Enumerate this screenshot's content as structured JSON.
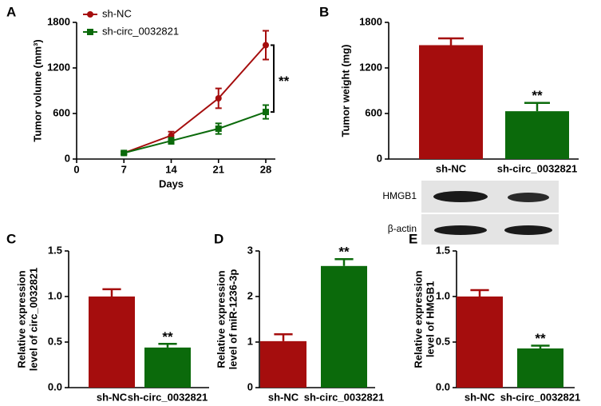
{
  "chart_data": [
    {
      "type": "line",
      "panel": "A",
      "y_label": "Tumor volume (mm³)",
      "x_label": "Days",
      "x": [
        7,
        14,
        21,
        28
      ],
      "xlim": [
        0,
        28
      ],
      "xticks": [
        0,
        7,
        14,
        21,
        28
      ],
      "ylim": [
        0,
        1800
      ],
      "yticks": [
        0,
        600,
        1200,
        1800
      ],
      "annotation": "**",
      "series": [
        {
          "name": "sh-NC",
          "color": "#a50d0d",
          "marker": "circle",
          "values": [
            80,
            310,
            800,
            1500
          ],
          "errors": [
            20,
            50,
            130,
            190
          ]
        },
        {
          "name": "sh-circ_0032821",
          "color": "#0b6a0b",
          "marker": "square",
          "values": [
            80,
            240,
            400,
            620
          ],
          "errors": [
            20,
            40,
            70,
            90
          ]
        }
      ]
    },
    {
      "type": "bar",
      "panel": "B",
      "y_label": "Tumor weight (mg)",
      "categories": [
        "sh-NC",
        "sh-circ_0032821"
      ],
      "values": [
        1500,
        630
      ],
      "errors": [
        90,
        110
      ],
      "colors": [
        "#a50d0d",
        "#0b6a0b"
      ],
      "ylim": [
        0,
        1800
      ],
      "yticks": [
        0,
        600,
        1200,
        1800
      ],
      "annotation": "**"
    },
    {
      "type": "bar",
      "panel": "C",
      "y_label": [
        "Relative expression",
        "level of circ_0032821"
      ],
      "categories": [
        "sh-NC",
        "sh-circ_0032821"
      ],
      "values": [
        1.0,
        0.44
      ],
      "errors": [
        0.08,
        0.04
      ],
      "colors": [
        "#a50d0d",
        "#0b6a0b"
      ],
      "ylim": [
        0,
        1.5
      ],
      "yticks": [
        {
          "value": 0,
          "label": "0.0"
        },
        0.5,
        {
          "value": 1,
          "label": "1.0"
        },
        1.5
      ],
      "annotation": "**"
    },
    {
      "type": "bar",
      "panel": "D",
      "y_label": [
        "Relative expression",
        "level of miR-1236-3p"
      ],
      "categories": [
        "sh-NC",
        "sh-circ_0032821"
      ],
      "values": [
        1.02,
        2.67
      ],
      "errors": [
        0.15,
        0.15
      ],
      "colors": [
        "#a50d0d",
        "#0b6a0b"
      ],
      "ylim": [
        0,
        3
      ],
      "yticks": [
        0,
        1,
        2,
        3
      ],
      "annotation": "**"
    },
    {
      "type": "bar",
      "panel": "E",
      "y_label": [
        "Relative expression",
        "level of HMGB1"
      ],
      "categories": [
        "sh-NC",
        "sh-circ_0032821"
      ],
      "values": [
        1.0,
        0.43
      ],
      "errors": [
        0.07,
        0.03
      ],
      "colors": [
        "#a50d0d",
        "#0b6a0b"
      ],
      "ylim": [
        0,
        1.5
      ],
      "yticks": [
        {
          "value": 0,
          "label": "0.0"
        },
        0.5,
        {
          "value": 1,
          "label": "1.0"
        },
        1.5
      ],
      "annotation": "**"
    }
  ],
  "blot": {
    "labels": [
      "HMGB1",
      "β-actin"
    ]
  }
}
